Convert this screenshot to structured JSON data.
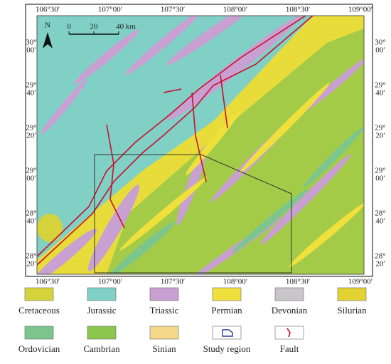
{
  "map": {
    "north": "N",
    "scale_labels": [
      "0",
      "20",
      "40 km"
    ],
    "top_labels": [
      "106°30′",
      "107°00′",
      "107°30′",
      "108°00′",
      "108°30′",
      "109°00′"
    ],
    "bottom_labels": [
      "106°30′",
      "107°00′",
      "107°30′",
      "108°00′",
      "108°30′",
      "109°00′"
    ],
    "left_labels": [
      [
        "30°",
        "00′"
      ],
      [
        "29°",
        "40′"
      ],
      [
        "29°",
        "20′"
      ],
      [
        "29°",
        "00′"
      ],
      [
        "28°",
        "40′"
      ],
      [
        "28°",
        "20′"
      ]
    ],
    "right_labels": [
      [
        "30°",
        "00′"
      ],
      [
        "29°",
        "40′"
      ],
      [
        "29°",
        "20′"
      ],
      [
        "29°",
        "00′"
      ],
      [
        "28°",
        "40′"
      ],
      [
        "28°",
        "20′"
      ]
    ]
  },
  "legend": [
    {
      "label": "Cretaceous",
      "color": "#d6d23c",
      "symbol": "box"
    },
    {
      "label": "Jurassic",
      "color": "#80d0c6",
      "symbol": "box"
    },
    {
      "label": "Triassic",
      "color": "#c8a0d2",
      "symbol": "box"
    },
    {
      "label": "Permian",
      "color": "#f0e03c",
      "symbol": "box"
    },
    {
      "label": "Devonian",
      "color": "#c8c6c8",
      "symbol": "box"
    },
    {
      "label": "Silurian",
      "color": "#e2d232",
      "symbol": "box"
    },
    {
      "label": "Ordovician",
      "color": "#7cc68e",
      "symbol": "box"
    },
    {
      "label": "Cambrian",
      "color": "#8cc64e",
      "symbol": "box"
    },
    {
      "label": "Sinian",
      "color": "#f6d88a",
      "symbol": "box"
    },
    {
      "label": "Study region",
      "color": "#2a3a9a",
      "symbol": "region"
    },
    {
      "label": "Fault",
      "color": "#c8102e",
      "symbol": "fault"
    }
  ]
}
